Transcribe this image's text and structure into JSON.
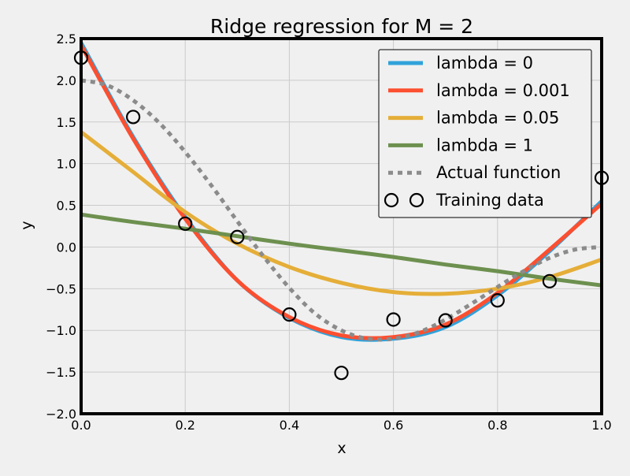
{
  "chart_data": {
    "type": "line",
    "title": "Ridge regression for M = 2",
    "xlabel": "x",
    "ylabel": "y",
    "xlim": [
      0.0,
      1.0
    ],
    "ylim": [
      -2.0,
      2.5
    ],
    "x_ticks": [
      "0.0",
      "0.2",
      "0.4",
      "0.6",
      "0.8",
      "1.0"
    ],
    "y_ticks": [
      "−2.0",
      "−1.5",
      "−1.0",
      "−0.5",
      "0.0",
      "0.5",
      "1.0",
      "1.5",
      "2.0",
      "2.5"
    ],
    "grid": true,
    "legend_position": "top-right",
    "x": [
      0.0,
      0.1,
      0.2,
      0.3,
      0.4,
      0.5,
      0.6,
      0.7,
      0.8,
      0.9,
      1.0
    ],
    "series": [
      {
        "name": "lambda = 0",
        "style": "line",
        "color": "#30a2da",
        "y": [
          2.45,
          1.32,
          0.36,
          -0.4,
          -0.85,
          -1.08,
          -1.1,
          -0.96,
          -0.58,
          -0.05,
          0.55
        ]
      },
      {
        "name": "lambda = 0.001",
        "style": "line",
        "color": "#fc4f30",
        "y": [
          2.42,
          1.3,
          0.34,
          -0.4,
          -0.84,
          -1.06,
          -1.08,
          -0.93,
          -0.55,
          -0.03,
          0.52
        ]
      },
      {
        "name": "lambda = 0.05",
        "style": "line",
        "color": "#e5ae38",
        "y": [
          1.38,
          0.9,
          0.42,
          0.04,
          -0.24,
          -0.43,
          -0.54,
          -0.56,
          -0.5,
          -0.36,
          -0.15
        ]
      },
      {
        "name": "lambda = 1",
        "style": "line",
        "color": "#6d904f",
        "y": [
          0.39,
          0.3,
          0.22,
          0.13,
          0.04,
          -0.04,
          -0.12,
          -0.21,
          -0.29,
          -0.38,
          -0.46
        ]
      },
      {
        "name": "Actual function",
        "style": "dotted",
        "color": "#8b8b8b",
        "x": [
          0.0,
          0.05,
          0.1,
          0.15,
          0.2,
          0.25,
          0.3,
          0.35,
          0.4,
          0.45,
          0.5,
          0.55,
          0.6,
          0.65,
          0.7,
          0.75,
          0.8,
          0.85,
          0.9,
          0.95,
          1.0
        ],
        "y": [
          2.0,
          1.94,
          1.76,
          1.49,
          1.14,
          0.74,
          0.31,
          -0.11,
          -0.49,
          -0.8,
          -1.0,
          -1.1,
          -1.1,
          -1.02,
          -0.87,
          -0.68,
          -0.48,
          -0.29,
          -0.13,
          -0.03,
          0.0
        ]
      },
      {
        "name": "Training data",
        "style": "markers",
        "color": "#000000",
        "y": [
          2.27,
          1.56,
          0.28,
          0.12,
          -0.81,
          -1.51,
          -0.87,
          -0.88,
          -0.64,
          -0.41,
          0.83
        ]
      }
    ]
  }
}
